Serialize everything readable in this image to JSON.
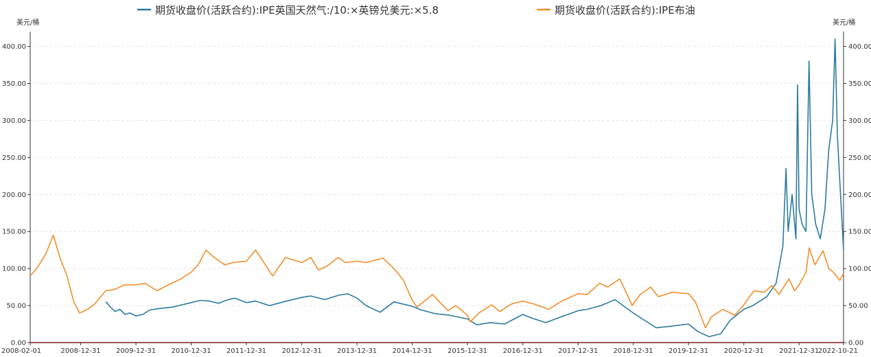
{
  "chart_data": {
    "type": "line",
    "unit_left": "美元/桶",
    "unit_right": "美元/桶",
    "ylim": [
      0,
      420
    ],
    "yticks": [
      0,
      50,
      100,
      150,
      200,
      250,
      300,
      350,
      400
    ],
    "ytick_labels": [
      "0.00",
      "50.00",
      "100.00",
      "150.00",
      "200.00",
      "250.00",
      "300.00",
      "350.00",
      "400.00"
    ],
    "xlim": [
      "2008-02-01",
      "2022-10-21"
    ],
    "x_tick_labels": [
      "2008-02-01",
      "2008-12-31",
      "2009-12-31",
      "2010-12-31",
      "2011-12-31",
      "2012-12-31",
      "2013-12-31",
      "2014-12-31",
      "2015-12-31",
      "2016-12-31",
      "2017-12-31",
      "2018-12-31",
      "2019-12-31",
      "2020-12-31",
      "2021-12-31",
      "2022-10-21"
    ],
    "legend_position": "top-center",
    "grid": true,
    "series": [
      {
        "name": "期货收盘价(活跃合约):IPE英国天然气:/10:×英镑兑美元:×5.8",
        "color": "#2b7aa0",
        "axis": "left",
        "points": [
          [
            "2009-06-15",
            55
          ],
          [
            "2009-07-15",
            48
          ],
          [
            "2009-08-15",
            42
          ],
          [
            "2009-09-15",
            45
          ],
          [
            "2009-10-20",
            38
          ],
          [
            "2009-11-20",
            40
          ],
          [
            "2009-12-31",
            36
          ],
          [
            "2010-02-15",
            38
          ],
          [
            "2010-04-01",
            44
          ],
          [
            "2010-06-01",
            46
          ],
          [
            "2010-09-01",
            48
          ],
          [
            "2010-12-31",
            54
          ],
          [
            "2011-03-01",
            57
          ],
          [
            "2011-05-01",
            56
          ],
          [
            "2011-07-01",
            53
          ],
          [
            "2011-09-01",
            58
          ],
          [
            "2011-10-15",
            60
          ],
          [
            "2011-12-31",
            54
          ],
          [
            "2012-03-01",
            56
          ],
          [
            "2012-06-01",
            50
          ],
          [
            "2012-09-01",
            55
          ],
          [
            "2012-12-31",
            61
          ],
          [
            "2013-03-01",
            63
          ],
          [
            "2013-06-01",
            58
          ],
          [
            "2013-09-01",
            64
          ],
          [
            "2013-11-01",
            66
          ],
          [
            "2013-12-31",
            60
          ],
          [
            "2014-03-01",
            50
          ],
          [
            "2014-06-01",
            41
          ],
          [
            "2014-09-01",
            55
          ],
          [
            "2014-12-31",
            49
          ],
          [
            "2015-03-01",
            44
          ],
          [
            "2015-06-01",
            39
          ],
          [
            "2015-09-01",
            37
          ],
          [
            "2015-12-31",
            32
          ],
          [
            "2016-03-01",
            24
          ],
          [
            "2016-06-01",
            27
          ],
          [
            "2016-09-01",
            25
          ],
          [
            "2016-12-31",
            38
          ],
          [
            "2017-03-01",
            33
          ],
          [
            "2017-06-01",
            27
          ],
          [
            "2017-09-01",
            34
          ],
          [
            "2017-12-31",
            43
          ],
          [
            "2018-03-01",
            45
          ],
          [
            "2018-06-01",
            50
          ],
          [
            "2018-09-01",
            58
          ],
          [
            "2018-12-31",
            40
          ],
          [
            "2019-03-01",
            32
          ],
          [
            "2019-06-01",
            20
          ],
          [
            "2019-09-01",
            22
          ],
          [
            "2019-12-31",
            25
          ],
          [
            "2020-03-01",
            15
          ],
          [
            "2020-05-15",
            8
          ],
          [
            "2020-08-01",
            12
          ],
          [
            "2020-10-01",
            30
          ],
          [
            "2020-12-31",
            45
          ],
          [
            "2021-03-01",
            50
          ],
          [
            "2021-06-01",
            62
          ],
          [
            "2021-08-01",
            80
          ],
          [
            "2021-09-15",
            130
          ],
          [
            "2021-10-06",
            235
          ],
          [
            "2021-10-20",
            150
          ],
          [
            "2021-11-15",
            200
          ],
          [
            "2021-12-10",
            140
          ],
          [
            "2021-12-21",
            348
          ],
          [
            "2021-12-31",
            180
          ],
          [
            "2022-01-20",
            160
          ],
          [
            "2022-02-15",
            150
          ],
          [
            "2022-03-07",
            380
          ],
          [
            "2022-03-25",
            200
          ],
          [
            "2022-04-20",
            160
          ],
          [
            "2022-05-20",
            140
          ],
          [
            "2022-06-20",
            180
          ],
          [
            "2022-07-15",
            260
          ],
          [
            "2022-08-10",
            300
          ],
          [
            "2022-08-26",
            410
          ],
          [
            "2022-09-10",
            280
          ],
          [
            "2022-10-01",
            200
          ],
          [
            "2022-10-21",
            125
          ]
        ]
      },
      {
        "name": "期货收盘价(活跃合约):IPE布油",
        "color": "#f28e2b",
        "axis": "left",
        "points": [
          [
            "2008-02-01",
            90
          ],
          [
            "2008-03-15",
            100
          ],
          [
            "2008-05-15",
            120
          ],
          [
            "2008-07-03",
            145
          ],
          [
            "2008-08-15",
            115
          ],
          [
            "2008-10-01",
            90
          ],
          [
            "2008-11-15",
            55
          ],
          [
            "2008-12-24",
            40
          ],
          [
            "2009-02-15",
            45
          ],
          [
            "2009-04-01",
            52
          ],
          [
            "2009-06-15",
            70
          ],
          [
            "2009-08-15",
            72
          ],
          [
            "2009-10-15",
            78
          ],
          [
            "2009-12-31",
            78
          ],
          [
            "2010-03-01",
            80
          ],
          [
            "2010-05-20",
            70
          ],
          [
            "2010-08-01",
            78
          ],
          [
            "2010-10-15",
            85
          ],
          [
            "2010-12-31",
            95
          ],
          [
            "2011-02-15",
            105
          ],
          [
            "2011-04-08",
            125
          ],
          [
            "2011-06-01",
            115
          ],
          [
            "2011-08-10",
            105
          ],
          [
            "2011-10-01",
            108
          ],
          [
            "2011-12-31",
            110
          ],
          [
            "2012-03-01",
            125
          ],
          [
            "2012-06-22",
            90
          ],
          [
            "2012-09-14",
            115
          ],
          [
            "2012-12-31",
            108
          ],
          [
            "2013-03-01",
            115
          ],
          [
            "2013-04-20",
            98
          ],
          [
            "2013-06-15",
            103
          ],
          [
            "2013-08-28",
            115
          ],
          [
            "2013-10-15",
            108
          ],
          [
            "2013-12-31",
            110
          ],
          [
            "2014-03-01",
            108
          ],
          [
            "2014-06-20",
            114
          ],
          [
            "2014-09-01",
            100
          ],
          [
            "2014-11-01",
            85
          ],
          [
            "2014-12-31",
            57
          ],
          [
            "2015-02-01",
            48
          ],
          [
            "2015-03-15",
            55
          ],
          [
            "2015-05-15",
            65
          ],
          [
            "2015-08-24",
            43
          ],
          [
            "2015-10-15",
            50
          ],
          [
            "2015-12-31",
            37
          ],
          [
            "2016-01-20",
            28
          ],
          [
            "2016-03-15",
            40
          ],
          [
            "2016-06-08",
            51
          ],
          [
            "2016-08-01",
            42
          ],
          [
            "2016-10-15",
            52
          ],
          [
            "2016-12-31",
            56
          ],
          [
            "2017-03-15",
            52
          ],
          [
            "2017-06-21",
            45
          ],
          [
            "2017-09-15",
            56
          ],
          [
            "2017-12-31",
            66
          ],
          [
            "2018-03-01",
            65
          ],
          [
            "2018-05-22",
            80
          ],
          [
            "2018-07-15",
            75
          ],
          [
            "2018-10-03",
            86
          ],
          [
            "2018-12-24",
            50
          ],
          [
            "2019-02-15",
            65
          ],
          [
            "2019-04-25",
            75
          ],
          [
            "2019-06-15",
            62
          ],
          [
            "2019-09-16",
            68
          ],
          [
            "2019-12-31",
            66
          ],
          [
            "2020-02-15",
            55
          ],
          [
            "2020-04-21",
            20
          ],
          [
            "2020-06-01",
            35
          ],
          [
            "2020-08-15",
            45
          ],
          [
            "2020-11-01",
            37
          ],
          [
            "2020-12-31",
            51
          ],
          [
            "2021-03-08",
            70
          ],
          [
            "2021-05-15",
            68
          ],
          [
            "2021-07-05",
            77
          ],
          [
            "2021-08-20",
            65
          ],
          [
            "2021-10-25",
            86
          ],
          [
            "2021-12-01",
            70
          ],
          [
            "2021-12-31",
            78
          ],
          [
            "2022-02-15",
            95
          ],
          [
            "2022-03-08",
            128
          ],
          [
            "2022-04-15",
            105
          ],
          [
            "2022-06-08",
            124
          ],
          [
            "2022-07-15",
            100
          ],
          [
            "2022-08-15",
            95
          ],
          [
            "2022-09-26",
            84
          ],
          [
            "2022-10-21",
            93
          ]
        ]
      }
    ]
  }
}
